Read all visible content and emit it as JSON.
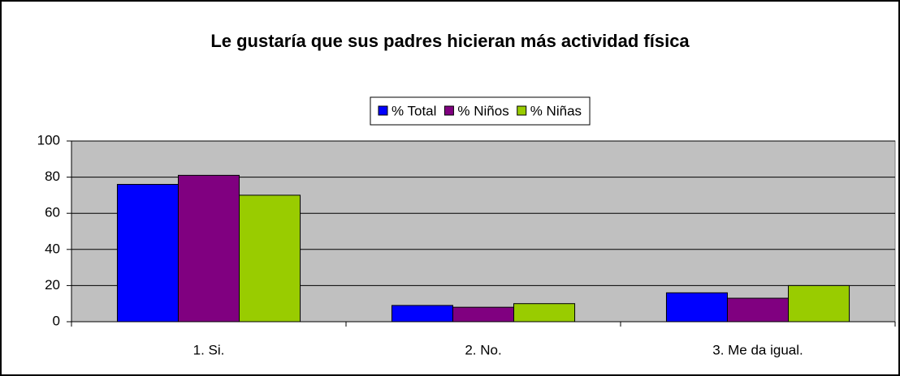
{
  "chart_data": {
    "type": "bar",
    "title": "Le gustaría que sus padres hicieran más actividad física",
    "categories": [
      "1. Si.",
      "2. No.",
      "3. Me da igual."
    ],
    "series": [
      {
        "name": "% Total",
        "color": "#0000ff",
        "values": [
          76,
          9,
          16
        ]
      },
      {
        "name": "% Niños",
        "color": "#800080",
        "values": [
          81,
          8,
          13
        ]
      },
      {
        "name": "% Niñas",
        "color": "#99cc00",
        "values": [
          70,
          10,
          20
        ]
      }
    ],
    "ylim": [
      0,
      100
    ],
    "yticks": [
      0,
      20,
      40,
      60,
      80,
      100
    ],
    "grid": true,
    "legend": "top"
  }
}
